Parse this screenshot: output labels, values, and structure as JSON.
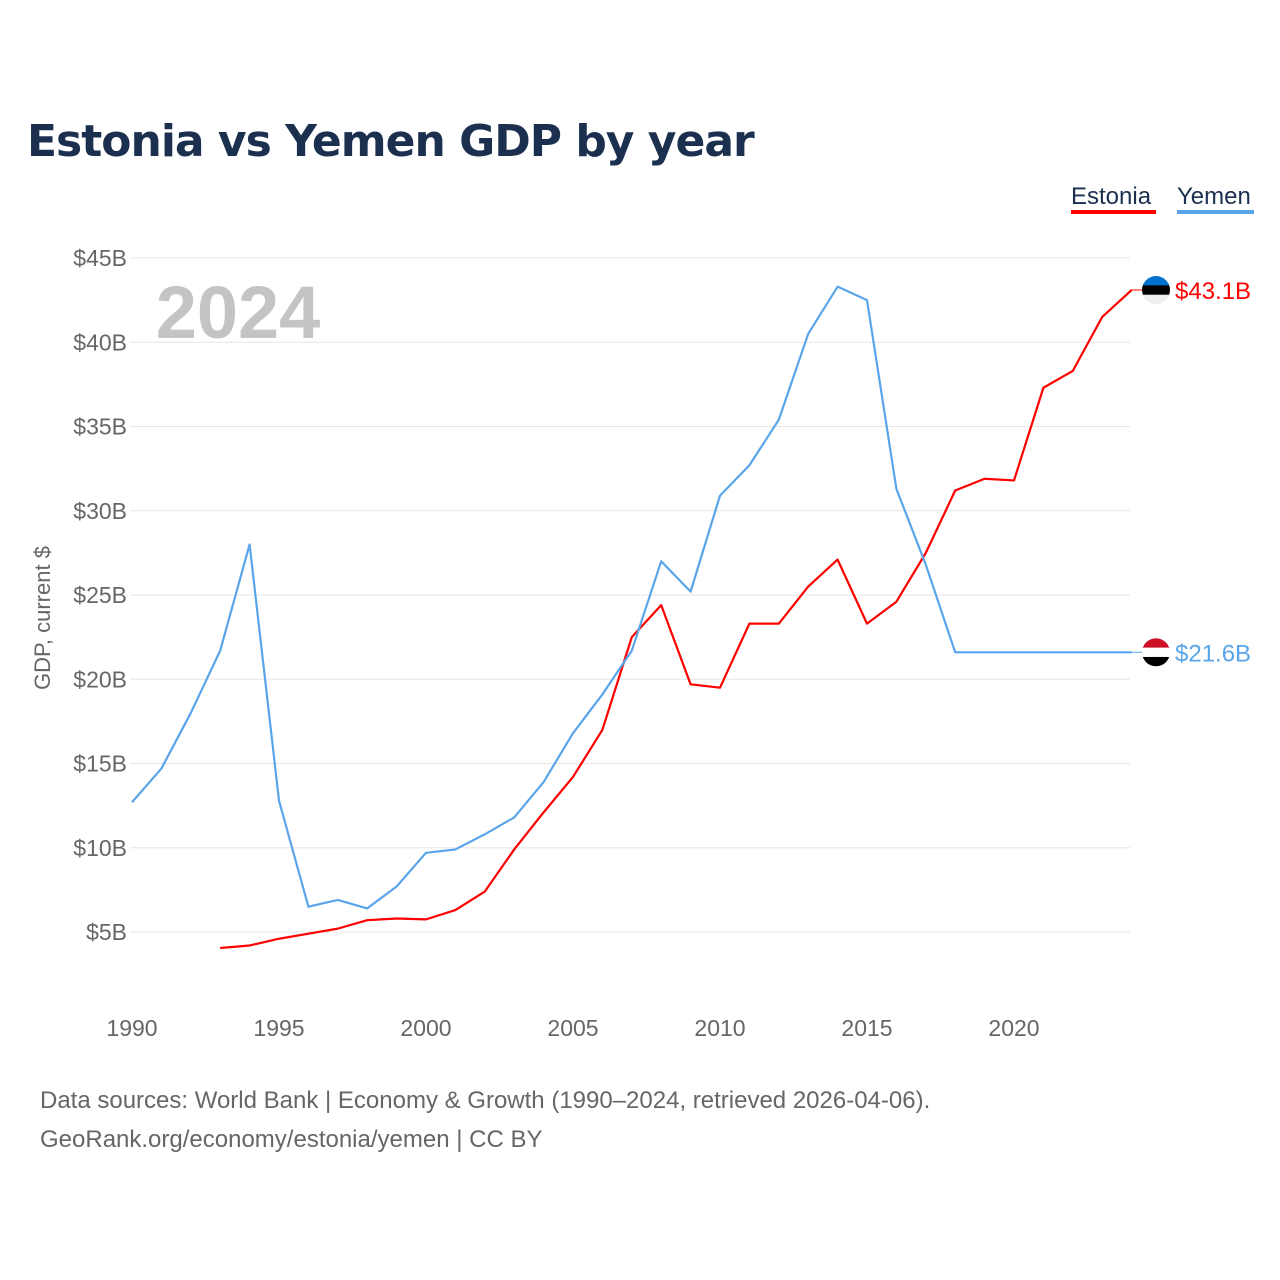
{
  "chart_data": {
    "type": "line",
    "title": "Estonia vs Yemen GDP by year",
    "xlabel": "",
    "ylabel": "GDP, current $",
    "xlim": [
      1990,
      2024
    ],
    "ylim": [
      0,
      45
    ],
    "x_ticks": [
      "1990",
      "1995",
      "2000",
      "2005",
      "2010",
      "2015",
      "2020"
    ],
    "y_ticks": [
      "$5B",
      "$10B",
      "$15B",
      "$20B",
      "$25B",
      "$30B",
      "$35B",
      "$40B",
      "$45B"
    ],
    "grid": true,
    "legend_position": "top-right",
    "year_label": "2024",
    "series": [
      {
        "name": "Estonia",
        "color": "#ff0000",
        "end_label": "$43.1B",
        "x": [
          1993,
          1994,
          1995,
          1996,
          1997,
          1998,
          1999,
          2000,
          2001,
          2002,
          2003,
          2004,
          2005,
          2006,
          2007,
          2008,
          2009,
          2010,
          2011,
          2012,
          2013,
          2014,
          2015,
          2016,
          2017,
          2018,
          2019,
          2020,
          2021,
          2022,
          2023,
          2024
        ],
        "values": [
          4.05,
          4.2,
          4.6,
          4.9,
          5.2,
          5.7,
          5.8,
          5.75,
          6.3,
          7.4,
          9.9,
          12.1,
          14.2,
          17.0,
          22.5,
          24.4,
          19.7,
          19.5,
          23.3,
          23.3,
          25.5,
          27.1,
          23.3,
          24.6,
          27.5,
          31.2,
          31.9,
          31.8,
          37.3,
          38.3,
          41.5,
          43.1
        ]
      },
      {
        "name": "Yemen",
        "color": "#5aa5ea",
        "end_label": "$21.6B",
        "x": [
          1990,
          1991,
          1992,
          1993,
          1994,
          1995,
          1996,
          1997,
          1998,
          1999,
          2000,
          2001,
          2002,
          2003,
          2004,
          2005,
          2006,
          2007,
          2008,
          2009,
          2010,
          2011,
          2012,
          2013,
          2014,
          2015,
          2016,
          2017,
          2018,
          2019,
          2020,
          2021,
          2022,
          2023,
          2024
        ],
        "values": [
          12.7,
          14.7,
          18.0,
          21.7,
          28.0,
          12.8,
          6.5,
          6.9,
          6.4,
          7.7,
          9.7,
          9.9,
          10.8,
          11.8,
          13.9,
          16.8,
          19.1,
          21.7,
          27.0,
          25.2,
          30.9,
          32.7,
          35.4,
          40.5,
          43.3,
          42.5,
          31.3,
          26.8,
          21.6,
          21.6,
          21.6,
          21.6,
          21.6,
          21.6,
          21.6
        ]
      }
    ],
    "source_lines": [
      "Data sources: World Bank | Economy & Growth (1990–2024, retrieved 2026-04-06).",
      "GeoRank.org/economy/estonia/yemen | CC BY"
    ]
  }
}
